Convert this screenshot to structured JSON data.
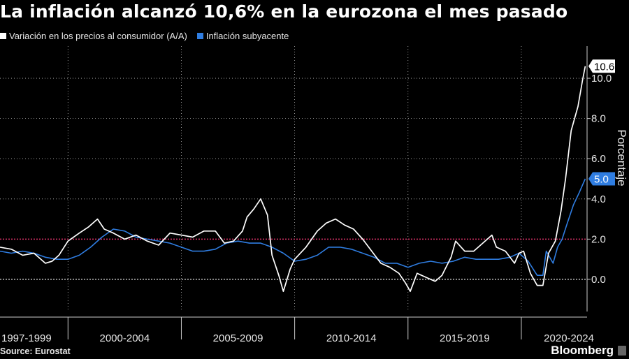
{
  "title": "La inflación alcanzó 10,6% en la eurozona el mes pasado",
  "source": "Source: Eurostat",
  "brand": "Bloomberg",
  "colors": {
    "headline": "#ffffff",
    "core": "#2f7de1",
    "target": "#e0336b",
    "zero": "#aaaaaa",
    "grid": "#bbbbbb"
  },
  "chart_data": {
    "type": "line",
    "ylabel": "Porcentaje",
    "ylim": [
      -1.6,
      11.6
    ],
    "xlim": [
      1997.0,
      2022.9
    ],
    "yticks": [
      {
        "v": 0,
        "label": "0.0"
      },
      {
        "v": 2,
        "label": "2.0"
      },
      {
        "v": 4,
        "label": "4.0"
      },
      {
        "v": 6,
        "label": "6.0"
      },
      {
        "v": 8,
        "label": "8.0"
      },
      {
        "v": 10,
        "label": "10.0"
      }
    ],
    "xperiods": [
      {
        "label": "1997-1999",
        "from": 1997.0,
        "to": 2000.0
      },
      {
        "label": "2000-2004",
        "from": 2000.0,
        "to": 2005.0
      },
      {
        "label": "2005-2009",
        "from": 2005.0,
        "to": 2010.0
      },
      {
        "label": "2010-2014",
        "from": 2010.0,
        "to": 2015.0
      },
      {
        "label": "2015-2019",
        "from": 2015.0,
        "to": 2020.0
      },
      {
        "label": "2020-2024",
        "from": 2020.0,
        "to": 2025.0
      }
    ],
    "reference_lines": [
      {
        "y": 2.0,
        "style": "dotted",
        "color": "#e0336b"
      },
      {
        "y": 0.0,
        "style": "dotted",
        "color": "#aaaaaa"
      }
    ],
    "series": [
      {
        "name": "Variación en los precios al consumidor (A/A)",
        "color": "#ffffff",
        "end_label": "10.6",
        "points": [
          [
            1997.0,
            1.6
          ],
          [
            1997.5,
            1.5
          ],
          [
            1998.0,
            1.2
          ],
          [
            1998.5,
            1.3
          ],
          [
            1999.0,
            0.8
          ],
          [
            1999.3,
            0.9
          ],
          [
            1999.6,
            1.2
          ],
          [
            2000.0,
            1.9
          ],
          [
            2000.5,
            2.3
          ],
          [
            2000.9,
            2.6
          ],
          [
            2001.3,
            3.0
          ],
          [
            2001.6,
            2.5
          ],
          [
            2002.0,
            2.3
          ],
          [
            2002.5,
            2.0
          ],
          [
            2003.0,
            2.2
          ],
          [
            2003.5,
            1.9
          ],
          [
            2004.0,
            1.7
          ],
          [
            2004.5,
            2.3
          ],
          [
            2005.0,
            2.2
          ],
          [
            2005.5,
            2.1
          ],
          [
            2006.0,
            2.4
          ],
          [
            2006.5,
            2.4
          ],
          [
            2006.9,
            1.8
          ],
          [
            2007.3,
            1.9
          ],
          [
            2007.7,
            2.4
          ],
          [
            2007.9,
            3.1
          ],
          [
            2008.2,
            3.5
          ],
          [
            2008.5,
            4.0
          ],
          [
            2008.8,
            3.2
          ],
          [
            2009.0,
            1.2
          ],
          [
            2009.3,
            0.2
          ],
          [
            2009.5,
            -0.6
          ],
          [
            2009.8,
            0.5
          ],
          [
            2010.0,
            1.0
          ],
          [
            2010.5,
            1.6
          ],
          [
            2011.0,
            2.4
          ],
          [
            2011.4,
            2.8
          ],
          [
            2011.8,
            3.0
          ],
          [
            2012.2,
            2.7
          ],
          [
            2012.6,
            2.5
          ],
          [
            2013.0,
            2.0
          ],
          [
            2013.4,
            1.4
          ],
          [
            2013.8,
            0.8
          ],
          [
            2014.2,
            0.6
          ],
          [
            2014.6,
            0.3
          ],
          [
            2014.9,
            -0.2
          ],
          [
            2015.1,
            -0.6
          ],
          [
            2015.4,
            0.3
          ],
          [
            2015.8,
            0.1
          ],
          [
            2016.2,
            -0.1
          ],
          [
            2016.5,
            0.2
          ],
          [
            2016.9,
            1.1
          ],
          [
            2017.1,
            1.9
          ],
          [
            2017.5,
            1.4
          ],
          [
            2017.9,
            1.4
          ],
          [
            2018.3,
            1.8
          ],
          [
            2018.7,
            2.2
          ],
          [
            2018.9,
            1.6
          ],
          [
            2019.3,
            1.4
          ],
          [
            2019.7,
            0.8
          ],
          [
            2019.9,
            1.3
          ],
          [
            2020.1,
            1.4
          ],
          [
            2020.4,
            0.3
          ],
          [
            2020.7,
            -0.3
          ],
          [
            2020.95,
            -0.3
          ],
          [
            2021.2,
            1.3
          ],
          [
            2021.5,
            1.9
          ],
          [
            2021.75,
            3.4
          ],
          [
            2021.95,
            5.0
          ],
          [
            2022.2,
            7.4
          ],
          [
            2022.5,
            8.6
          ],
          [
            2022.7,
            9.9
          ],
          [
            2022.82,
            10.6
          ]
        ]
      },
      {
        "name": "Inflación subyacente",
        "color": "#2f7de1",
        "end_label": "5.0",
        "points": [
          [
            1997.0,
            1.4
          ],
          [
            1997.5,
            1.3
          ],
          [
            1998.0,
            1.4
          ],
          [
            1998.5,
            1.3
          ],
          [
            1999.0,
            1.1
          ],
          [
            1999.5,
            1.0
          ],
          [
            2000.0,
            1.0
          ],
          [
            2000.5,
            1.2
          ],
          [
            2001.0,
            1.6
          ],
          [
            2001.5,
            2.1
          ],
          [
            2002.0,
            2.5
          ],
          [
            2002.5,
            2.4
          ],
          [
            2003.0,
            2.1
          ],
          [
            2003.5,
            2.0
          ],
          [
            2004.0,
            1.9
          ],
          [
            2004.5,
            1.8
          ],
          [
            2005.0,
            1.6
          ],
          [
            2005.5,
            1.4
          ],
          [
            2006.0,
            1.4
          ],
          [
            2006.5,
            1.5
          ],
          [
            2007.0,
            1.8
          ],
          [
            2007.5,
            1.9
          ],
          [
            2008.0,
            1.8
          ],
          [
            2008.5,
            1.8
          ],
          [
            2009.0,
            1.6
          ],
          [
            2009.5,
            1.3
          ],
          [
            2010.0,
            0.9
          ],
          [
            2010.5,
            1.0
          ],
          [
            2011.0,
            1.2
          ],
          [
            2011.5,
            1.6
          ],
          [
            2012.0,
            1.6
          ],
          [
            2012.5,
            1.5
          ],
          [
            2013.0,
            1.3
          ],
          [
            2013.5,
            1.1
          ],
          [
            2014.0,
            0.8
          ],
          [
            2014.5,
            0.8
          ],
          [
            2015.0,
            0.6
          ],
          [
            2015.5,
            0.8
          ],
          [
            2016.0,
            0.9
          ],
          [
            2016.5,
            0.8
          ],
          [
            2017.0,
            0.9
          ],
          [
            2017.5,
            1.1
          ],
          [
            2018.0,
            1.0
          ],
          [
            2018.5,
            1.0
          ],
          [
            2019.0,
            1.0
          ],
          [
            2019.5,
            1.1
          ],
          [
            2019.9,
            1.3
          ],
          [
            2020.3,
            0.9
          ],
          [
            2020.7,
            0.2
          ],
          [
            2020.95,
            0.2
          ],
          [
            2021.1,
            1.4
          ],
          [
            2021.4,
            0.8
          ],
          [
            2021.6,
            1.6
          ],
          [
            2021.8,
            2.0
          ],
          [
            2022.0,
            2.7
          ],
          [
            2022.3,
            3.7
          ],
          [
            2022.55,
            4.3
          ],
          [
            2022.82,
            5.0
          ]
        ]
      }
    ]
  }
}
